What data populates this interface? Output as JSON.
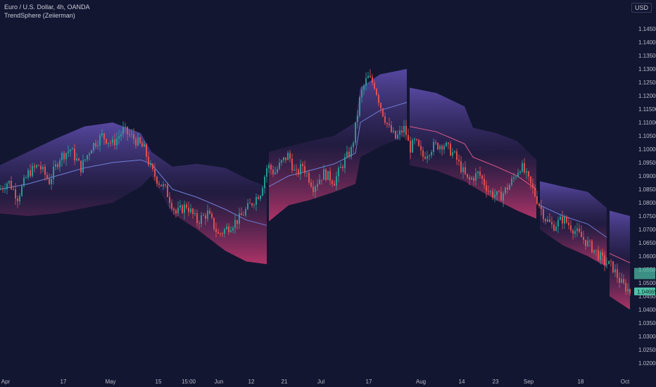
{
  "header": {
    "symbol_line": "Euro / U.S. Dollar, 4h, OANDA",
    "indicator_line": "TrendSphere (Zeiierman)",
    "currency": "USD"
  },
  "colors": {
    "background": "#131631",
    "upper_band": "#5b4aa8",
    "lower_band": "#b8356a",
    "up_candle": "#26a69a",
    "down_candle": "#ef5350",
    "price_tag": "#4fc3a8",
    "price_tag_text": "#0e2a26"
  },
  "chart_data": {
    "type": "line",
    "title": "",
    "xlabel": "",
    "ylabel": "",
    "ylim": [
      1.015,
      1.15
    ],
    "y_ticks": [
      "1.14500",
      "1.14000",
      "1.13500",
      "1.13000",
      "1.12500",
      "1.12000",
      "1.11500",
      "1.11000",
      "1.10500",
      "1.10000",
      "1.09500",
      "1.09000",
      "1.08500",
      "1.08000",
      "1.07500",
      "1.07000",
      "1.06500",
      "1.06000",
      "1.05500",
      "1.05000",
      "1.04500",
      "1.04000",
      "1.03500",
      "1.03000",
      "1.02500",
      "1.02000"
    ],
    "x_ticks": [
      "Apr",
      "17",
      "May",
      "15",
      "15:00",
      "Jun",
      "12",
      "21",
      "Jul",
      "17",
      "Aug",
      "14",
      "23",
      "Sep",
      "18",
      "Oct"
    ],
    "last_price": "1.04669",
    "series": [
      {
        "name": "EUR/USD",
        "x": [
          0,
          12,
          25,
          40,
          55,
          70,
          85,
          100,
          115,
          130,
          145,
          160,
          175,
          190,
          205,
          215,
          225,
          235,
          250,
          265,
          280,
          295,
          310,
          325,
          340,
          355,
          370,
          380,
          390,
          400,
          410,
          420,
          430,
          445,
          460,
          475,
          490,
          500,
          512,
          522,
          532,
          542,
          552,
          562,
          575,
          582,
          590,
          600,
          615,
          630,
          645,
          655,
          665,
          680,
          695,
          710,
          725,
          740,
          755,
          765,
          775,
          785,
          800,
          815,
          830,
          845,
          858,
          870,
          882,
          895
        ],
        "values": [
          1.085,
          1.088,
          1.082,
          1.091,
          1.094,
          1.088,
          1.097,
          1.1,
          1.093,
          1.101,
          1.105,
          1.102,
          1.107,
          1.104,
          1.1,
          1.092,
          1.088,
          1.085,
          1.076,
          1.079,
          1.073,
          1.076,
          1.068,
          1.071,
          1.074,
          1.079,
          1.084,
          1.094,
          1.091,
          1.095,
          1.098,
          1.09,
          1.094,
          1.086,
          1.091,
          1.088,
          1.096,
          1.1,
          1.12,
          1.127,
          1.124,
          1.115,
          1.108,
          1.104,
          1.108,
          1.1,
          1.103,
          1.097,
          1.101,
          1.102,
          1.098,
          1.093,
          1.088,
          1.091,
          1.084,
          1.082,
          1.087,
          1.094,
          1.086,
          1.08,
          1.074,
          1.071,
          1.074,
          1.07,
          1.066,
          1.062,
          1.058,
          1.056,
          1.05,
          1.0467
        ]
      },
      {
        "name": "",
        "x": [
          0,
          40,
          80,
          120,
          160,
          200,
          215,
          245,
          280,
          320,
          350,
          379,
          382,
          410,
          440,
          475,
          505,
          512,
          540,
          578,
          582,
          620,
          660,
          672,
          705,
          735,
          762,
          767,
          800,
          835,
          862,
          866,
          895
        ],
        "values": [
          1.094,
          1.099,
          1.104,
          1.1085,
          1.11,
          1.106,
          1.099,
          1.0935,
          1.0945,
          1.093,
          1.089,
          1.086,
          1.099,
          1.101,
          1.103,
          1.105,
          1.11,
          1.123,
          1.128,
          1.13,
          1.123,
          1.121,
          1.116,
          1.108,
          1.106,
          1.103,
          1.096,
          1.088,
          1.086,
          1.084,
          1.078,
          1.077,
          1.075
        ]
      },
      {
        "name": "",
        "x": [
          0,
          40,
          80,
          120,
          160,
          200,
          215,
          245,
          280,
          320,
          350,
          379,
          382,
          410,
          440,
          475,
          505,
          512,
          540,
          578,
          582,
          620,
          660,
          672,
          705,
          735,
          762,
          767,
          800,
          835,
          862,
          866,
          895
        ],
        "values": [
          1.076,
          1.075,
          1.076,
          1.078,
          1.08,
          1.086,
          1.09,
          1.076,
          1.07,
          1.062,
          1.058,
          1.057,
          1.073,
          1.079,
          1.081,
          1.084,
          1.087,
          1.097,
          1.101,
          1.105,
          1.094,
          1.092,
          1.088,
          1.086,
          1.081,
          1.077,
          1.074,
          1.07,
          1.064,
          1.06,
          1.056,
          1.045,
          1.04
        ]
      },
      {
        "name": "",
        "x": [
          0,
          40,
          80,
          120,
          160,
          200,
          215,
          245,
          280,
          320,
          350,
          379,
          382,
          410,
          440,
          475,
          505,
          512,
          540,
          578,
          582,
          620,
          660,
          672,
          705,
          735,
          762,
          767,
          800,
          835,
          862,
          866,
          895
        ],
        "values": [
          1.085,
          1.087,
          1.09,
          1.093,
          1.095,
          1.096,
          1.0945,
          1.085,
          1.082,
          1.0775,
          1.0735,
          1.0715,
          1.086,
          1.09,
          1.092,
          1.0945,
          1.0985,
          1.11,
          1.1145,
          1.1175,
          1.1085,
          1.1065,
          1.102,
          1.097,
          1.0935,
          1.09,
          1.085,
          1.079,
          1.075,
          1.072,
          1.067,
          1.061,
          1.0575
        ]
      }
    ]
  }
}
